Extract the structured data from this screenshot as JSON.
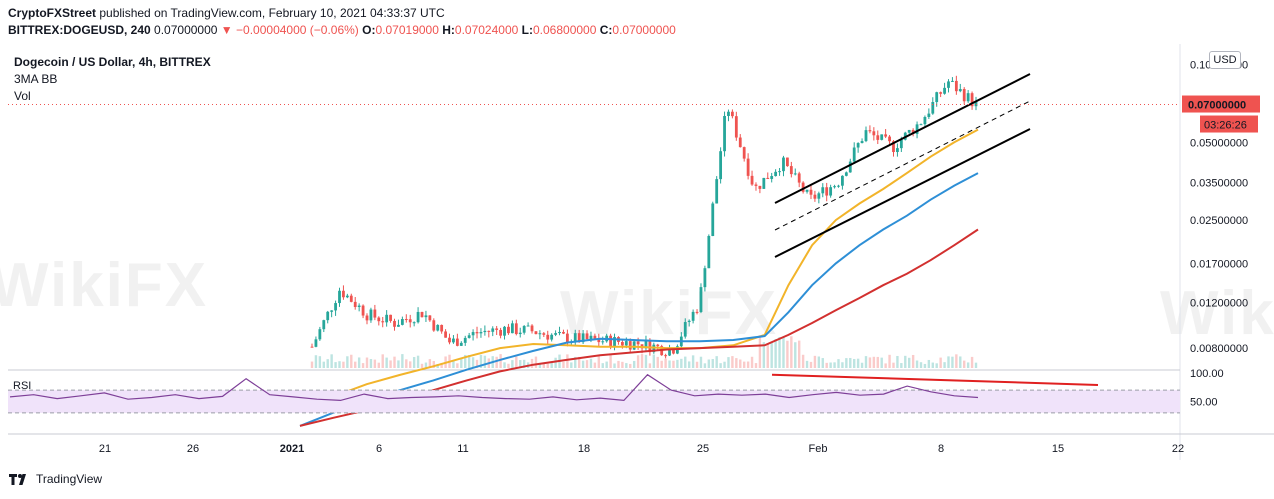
{
  "header": {
    "publisher": "CryptoFXStreet",
    "published_text": "published on TradingView.com, February 10, 2021 04:33:37 UTC",
    "symbol": "BITTREX:DOGEUSD, 240",
    "last": "0.07000000",
    "change": "−0.00004000 (−0.06%)",
    "o_label": "O:",
    "o": "0.07019000",
    "h_label": "H:",
    "h": "0.07024000",
    "l_label": "L:",
    "l": "0.06800000",
    "c_label": "C:",
    "c": "0.07000000"
  },
  "legend": {
    "title": "Dogecoin / US Dollar, 4h, BITTREX",
    "ind1": "3MA BB",
    "ind2": "Vol"
  },
  "currency": "USD",
  "watermark": "WikiFX",
  "price_badge": "0.07000000",
  "countdown_badge": "03:26:26",
  "rsi_label": "RSI",
  "footer": {
    "brand": "TradingView"
  },
  "colors": {
    "up": "#26a69a",
    "down": "#ef5350",
    "ma_fast": "#f2b42a",
    "ma_mid": "#2e8fd6",
    "ma_slow": "#d2302f",
    "rsi": "#7e3f98",
    "rsi_band": "#f0e3fa",
    "channel": "#000000",
    "trendline": "#e02020"
  },
  "chart_data": {
    "type": "line",
    "x_ticks": [
      "21",
      "26",
      "2021",
      "6",
      "11",
      "18",
      "25",
      "Feb",
      "8",
      "15",
      "22"
    ],
    "y_ticks": [
      "0.10000000",
      "0.07000000",
      "0.05000000",
      "0.03500000",
      "0.02500000",
      "0.01700000",
      "0.01200000",
      "0.00800000"
    ],
    "y_scale": "log",
    "series": [
      {
        "values": [
          0.0046,
          0.0052,
          0.0058,
          0.0063,
          0.0068,
          0.0074,
          0.008,
          0.0083,
          0.0082,
          0.0081,
          0.0081,
          0.008,
          0.008,
          0.0082,
          0.009,
          0.014,
          0.02,
          0.025,
          0.029,
          0.033,
          0.038,
          0.044,
          0.05,
          0.056
        ]
      },
      {
        "values": [
          0.004,
          0.0045,
          0.005,
          0.0055,
          0.006,
          0.0066,
          0.0072,
          0.0078,
          0.0084,
          0.0087,
          0.0086,
          0.0085,
          0.0085,
          0.0086,
          0.0089,
          0.011,
          0.014,
          0.017,
          0.02,
          0.023,
          0.026,
          0.03,
          0.034,
          0.038
        ]
      },
      {
        "values": [
          0.004,
          0.0043,
          0.0046,
          0.005,
          0.0055,
          0.006,
          0.0065,
          0.0069,
          0.0072,
          0.0075,
          0.0077,
          0.0079,
          0.008,
          0.0081,
          0.0082,
          0.009,
          0.01,
          0.0112,
          0.0125,
          0.014,
          0.0155,
          0.0175,
          0.02,
          0.023
        ]
      },
      {
        "values": [
          0.0081,
          0.0135,
          0.0108,
          0.01,
          0.011,
          0.0084,
          0.0092,
          0.0095,
          0.0093,
          0.0088,
          0.0086,
          0.0085,
          0.0083,
          0.0078,
          0.012,
          0.07,
          0.033,
          0.042,
          0.03,
          0.035,
          0.055,
          0.048,
          0.06,
          0.086,
          0.07
        ]
      }
    ],
    "rsi": {
      "ylim": [
        0,
        100
      ],
      "levels": [
        70,
        30
      ],
      "values": [
        58,
        62,
        55,
        60,
        65,
        54,
        57,
        62,
        55,
        59,
        90,
        62,
        58,
        54,
        52,
        63,
        55,
        57,
        58,
        60,
        57,
        55,
        54,
        58,
        53,
        56,
        52,
        97,
        70,
        60,
        63,
        61,
        63,
        57,
        62,
        66,
        61,
        63,
        77,
        67,
        60,
        57
      ]
    }
  }
}
